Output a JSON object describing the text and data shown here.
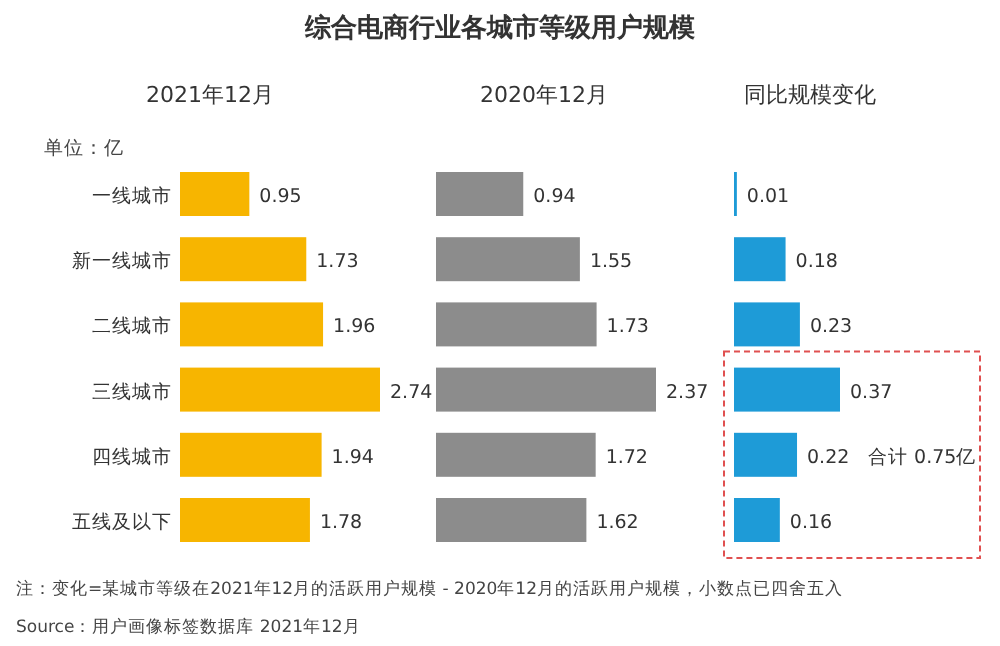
{
  "chart_data": [
    {
      "type": "bar",
      "orientation": "horizontal",
      "title": "综合电商行业各城市等级用户规模",
      "subtitle": "2021年12月",
      "categories": [
        "一线城市",
        "新一线城市",
        "二线城市",
        "三线城市",
        "四线城市",
        "五线及以下"
      ],
      "values": [
        0.95,
        1.73,
        1.96,
        2.74,
        1.94,
        1.78
      ],
      "color": "#f7b500",
      "data_labels": true,
      "annotations": [
        "单位：亿",
        "注：变化=某城市等级在2021年12月的活跃用户规模 - 2020年12月的活跃用户规模，小数点已四舍五入",
        "Source：用户画像标签数据库 2021年12月"
      ]
    },
    {
      "type": "bar",
      "orientation": "horizontal",
      "subtitle": "2020年12月",
      "values": [
        0.94,
        1.55,
        1.73,
        2.37,
        1.72,
        1.62
      ],
      "color": "#8c8c8c",
      "data_labels": true
    },
    {
      "type": "bar",
      "orientation": "horizontal",
      "subtitle": "同比规模变化",
      "values": [
        0.01,
        0.18,
        0.23,
        0.37,
        0.22,
        0.16
      ],
      "color": "#1e9bd7",
      "data_labels": true,
      "annotations": [
        "合计 0.75亿"
      ]
    }
  ]
}
